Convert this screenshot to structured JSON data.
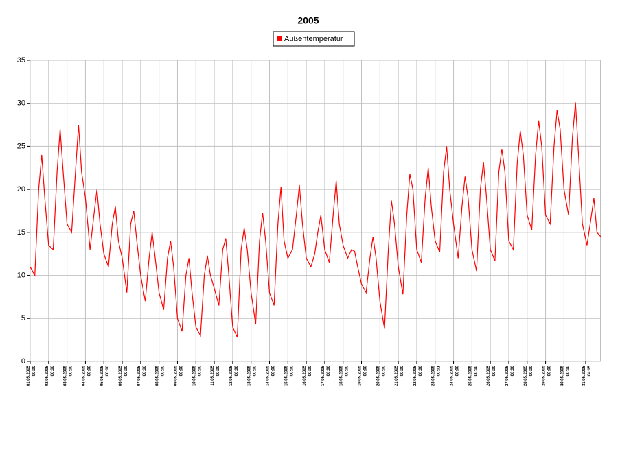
{
  "chart_data": {
    "type": "line",
    "title": "2005",
    "x": [
      1,
      1.25,
      1.458,
      1.625,
      1.792,
      2,
      2.25,
      2.458,
      2.625,
      2.792,
      3,
      3.25,
      3.458,
      3.625,
      3.792,
      4,
      4.25,
      4.458,
      4.625,
      4.792,
      5,
      5.25,
      5.458,
      5.625,
      5.792,
      6,
      6.25,
      6.458,
      6.625,
      6.792,
      7,
      7.25,
      7.458,
      7.625,
      7.792,
      8,
      8.25,
      8.458,
      8.625,
      8.792,
      9,
      9.25,
      9.458,
      9.625,
      9.792,
      10,
      10.25,
      10.458,
      10.625,
      10.792,
      11,
      11.25,
      11.458,
      11.625,
      11.792,
      12,
      12.25,
      12.458,
      12.625,
      12.792,
      13,
      13.25,
      13.458,
      13.625,
      13.792,
      14,
      14.25,
      14.458,
      14.625,
      14.792,
      15,
      15.25,
      15.458,
      15.625,
      15.792,
      16,
      16.25,
      16.458,
      16.625,
      16.792,
      17,
      17.25,
      17.458,
      17.625,
      17.792,
      18,
      18.25,
      18.458,
      18.625,
      18.792,
      19,
      19.25,
      19.458,
      19.625,
      19.792,
      20,
      20.25,
      20.458,
      20.625,
      20.792,
      21,
      21.25,
      21.458,
      21.625,
      21.792,
      22,
      22.25,
      22.458,
      22.625,
      22.792,
      23,
      23.25,
      23.458,
      23.625,
      23.792,
      24,
      24.25,
      24.458,
      24.625,
      24.792,
      25,
      25.25,
      25.458,
      25.625,
      25.792,
      26,
      26.25,
      26.458,
      26.625,
      26.792,
      27,
      27.25,
      27.458,
      27.625,
      27.792,
      28,
      28.25,
      28.458,
      28.625,
      28.792,
      29,
      29.25,
      29.458,
      29.625,
      29.792,
      30,
      30.25,
      30.458,
      30.625,
      30.792,
      31,
      31.25,
      31.458,
      31.625,
      31.792,
      32
    ],
    "series": [
      {
        "name": "Außentemperatur",
        "color": "#ff0000",
        "values": [
          11,
          10,
          20,
          24,
          19,
          13.5,
          13,
          22,
          27,
          22,
          16,
          15,
          22,
          27.5,
          22,
          19,
          13,
          17,
          20,
          16,
          12.5,
          11,
          16,
          18,
          14,
          12,
          8,
          16,
          17.5,
          14,
          10,
          7,
          12,
          15,
          12,
          8,
          6,
          12,
          14,
          11,
          5,
          3.5,
          10,
          12,
          8,
          4,
          3,
          10,
          12.3,
          10,
          8.5,
          6.5,
          13,
          14.3,
          10,
          4,
          2.8,
          13,
          15.5,
          13,
          8,
          4.3,
          14,
          17.3,
          14,
          8,
          6.5,
          16,
          20.3,
          14,
          12,
          13,
          17,
          20.5,
          16,
          12,
          11,
          12.5,
          15,
          17,
          13,
          11.5,
          17,
          21,
          16,
          13.5,
          12,
          13,
          12.8,
          11,
          9,
          8,
          12,
          14.5,
          12,
          7,
          3.8,
          13,
          18.7,
          16,
          11,
          7.8,
          17,
          21.8,
          20,
          13,
          11.5,
          19,
          22.5,
          18,
          14,
          12.7,
          22,
          25,
          20,
          16,
          12,
          18,
          21.5,
          19,
          13,
          10.5,
          20,
          23.2,
          19,
          13,
          11.7,
          22,
          24.7,
          22,
          14,
          13,
          23,
          26.8,
          24,
          17,
          15.3,
          24,
          28,
          25,
          17,
          16,
          25,
          29.2,
          27,
          20,
          17,
          26,
          30.1,
          24,
          16,
          13.5,
          16.5,
          19,
          15,
          14.5
        ]
      }
    ],
    "xlim": [
      1,
      32
    ],
    "ylim": [
      0,
      35
    ],
    "yticks": [
      0,
      5,
      10,
      15,
      20,
      25,
      30,
      35
    ],
    "xticks": [
      {
        "value": 1,
        "label": "01.05.2005 00:00"
      },
      {
        "value": 2,
        "label": "02.05.2005 00:00"
      },
      {
        "value": 3,
        "label": "03.05.2005 00:00"
      },
      {
        "value": 4,
        "label": "04.05.2005 00:00"
      },
      {
        "value": 5,
        "label": "05.05.2005 00:00"
      },
      {
        "value": 6,
        "label": "06.05.2005 00:00"
      },
      {
        "value": 7,
        "label": "07.05.2005 00:00"
      },
      {
        "value": 8,
        "label": "08.05.2005 00:00"
      },
      {
        "value": 9,
        "label": "09.05.2005 00:00"
      },
      {
        "value": 10,
        "label": "10.05.2005 00:00"
      },
      {
        "value": 11,
        "label": "11.05.2005 00:00"
      },
      {
        "value": 12,
        "label": "12.05.2005 00:00"
      },
      {
        "value": 13,
        "label": "13.05.2005 00:00"
      },
      {
        "value": 14,
        "label": "14.05.2005 00:00"
      },
      {
        "value": 15,
        "label": "15.05.2005 00:00"
      },
      {
        "value": 16,
        "label": "16.05.2005 00:00"
      },
      {
        "value": 17,
        "label": "17.05.2005 00:00"
      },
      {
        "value": 18,
        "label": "18.05.2005 00:00"
      },
      {
        "value": 19,
        "label": "19.05.2005 00:00"
      },
      {
        "value": 20,
        "label": "20.05.2005 00:00"
      },
      {
        "value": 21,
        "label": "21.05.2005 00:00"
      },
      {
        "value": 22,
        "label": "22.05.2005 00:00"
      },
      {
        "value": 23,
        "label": "23.05.2005 00:01"
      },
      {
        "value": 24,
        "label": "24.05.2005 00:00"
      },
      {
        "value": 25,
        "label": "25.05.2005 00:00"
      },
      {
        "value": 26,
        "label": "26.05.2005 00:00"
      },
      {
        "value": 27,
        "label": "27.05.2005 00:00"
      },
      {
        "value": 28,
        "label": "28.05.2005 00:00"
      },
      {
        "value": 29,
        "label": "29.05.2005 00:00"
      },
      {
        "value": 30,
        "label": "30.05.2005 00:00"
      },
      {
        "value": 31.177,
        "label": "31.05.2005 04:15"
      }
    ],
    "grid": true
  }
}
